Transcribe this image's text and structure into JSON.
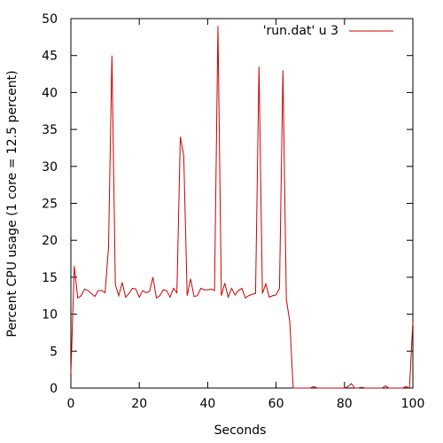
{
  "chart_data": {
    "type": "line",
    "title": "",
    "xlabel": "Seconds",
    "ylabel": "Percent CPU usage (1 core = 12.5 percent)",
    "xlim": [
      0,
      100
    ],
    "ylim": [
      0,
      50
    ],
    "xticks": [
      0,
      20,
      40,
      60,
      80,
      100
    ],
    "yticks": [
      0,
      5,
      10,
      15,
      20,
      25,
      30,
      35,
      40,
      45,
      50
    ],
    "grid": false,
    "legend_position": "top-right",
    "series": [
      {
        "name": "'run.dat' u 3",
        "color": "#cc0000",
        "x": [
          0,
          1,
          2,
          3,
          4,
          5,
          6,
          7,
          8,
          9,
          10,
          11,
          12,
          13,
          14,
          15,
          16,
          17,
          18,
          19,
          20,
          21,
          22,
          23,
          24,
          25,
          26,
          27,
          28,
          29,
          30,
          31,
          32,
          33,
          34,
          35,
          36,
          37,
          38,
          39,
          40,
          41,
          42,
          43,
          44,
          45,
          46,
          47,
          48,
          49,
          50,
          51,
          52,
          53,
          54,
          55,
          56,
          57,
          58,
          59,
          60,
          61,
          62,
          63,
          64,
          65,
          66,
          67,
          68,
          69,
          70,
          71,
          72,
          73,
          74,
          75,
          76,
          77,
          78,
          79,
          80,
          81,
          82,
          83,
          84,
          85,
          86,
          87,
          88,
          89,
          90,
          91,
          92,
          93,
          94,
          95,
          96,
          97,
          98,
          99,
          100
        ],
        "y": [
          2,
          16.5,
          12.2,
          12.5,
          13.4,
          13.2,
          12.8,
          12.4,
          13.2,
          13.2,
          12.9,
          19,
          45,
          14,
          12.5,
          14.3,
          12.3,
          12.8,
          13.5,
          13.4,
          12.3,
          13.2,
          12.9,
          13.1,
          15,
          12.2,
          12.5,
          13.3,
          13.2,
          12.3,
          13.5,
          12.9,
          34,
          31.5,
          12.5,
          14.8,
          12.4,
          12.5,
          13.5,
          13.3,
          13.3,
          13.4,
          13.2,
          49,
          12.5,
          14.2,
          12.3,
          13.5,
          12.6,
          13.2,
          13.5,
          12.2,
          12.5,
          12.7,
          12.8,
          43.5,
          12.8,
          14.1,
          12.3,
          12.5,
          12.6,
          13.5,
          43,
          12,
          9,
          0,
          0,
          0,
          0,
          0,
          0,
          0.2,
          0,
          0,
          0,
          0,
          0,
          0,
          0,
          0,
          0,
          0.2,
          0.6,
          0,
          0,
          0.1,
          0,
          0,
          0,
          0,
          0,
          0,
          0.3,
          0,
          0,
          0,
          0,
          0,
          0.2,
          0,
          9
        ]
      }
    ]
  }
}
